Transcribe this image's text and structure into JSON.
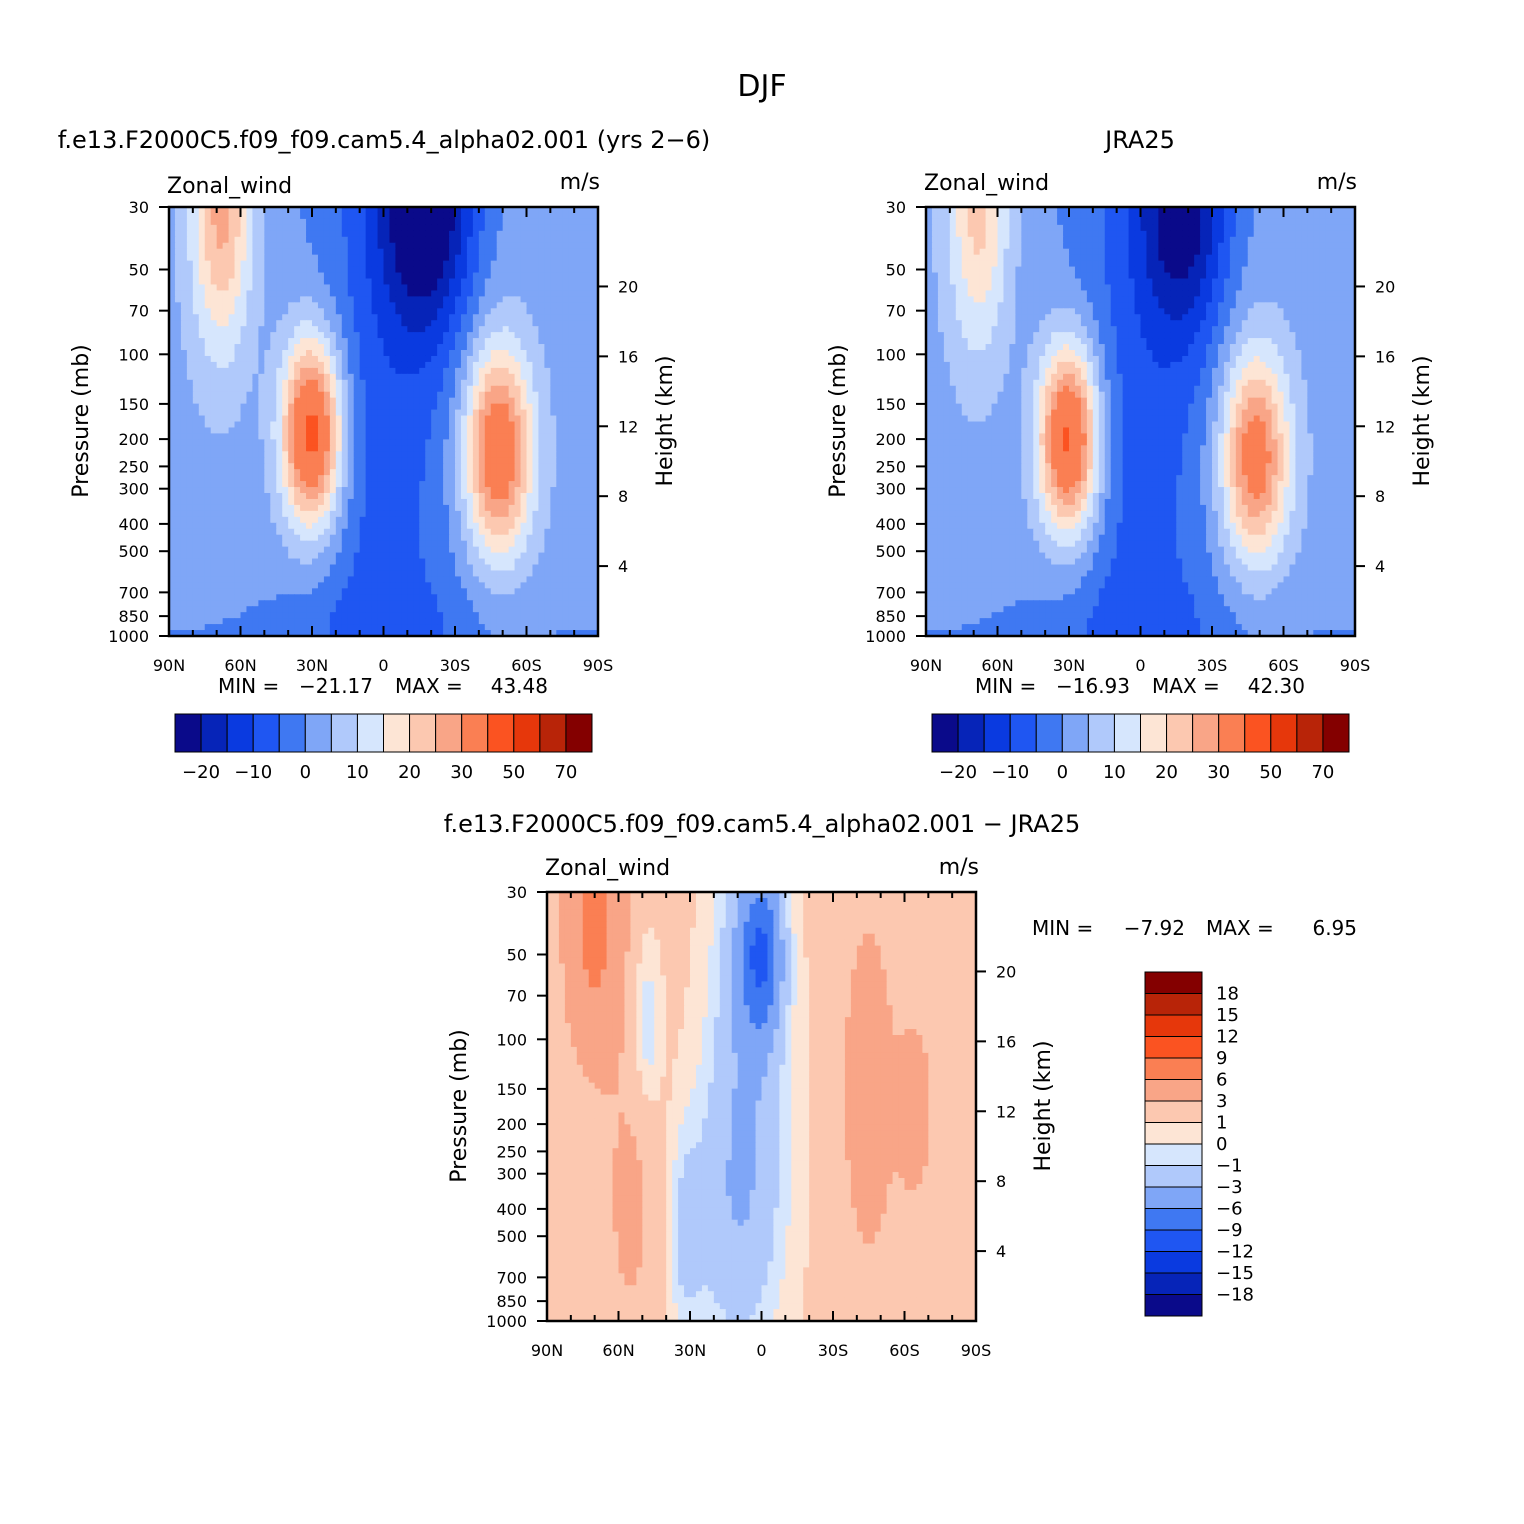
{
  "figure": {
    "title": "DJF"
  },
  "chart_data": [
    {
      "type": "heatmap",
      "title": "f.e13.F2000C5.f09_f09.cam5.4_alpha02.001 (yrs 2−6)",
      "left_label": "Zonal_wind",
      "right_label": "m/s",
      "xlabel": "",
      "ylabel": "Pressure (mb)",
      "y2label": "Height (km)",
      "x_ticks": [
        "90N",
        "60N",
        "30N",
        "0",
        "30S",
        "60S",
        "90S"
      ],
      "xlim": [
        90,
        -90
      ],
      "y_ticks": [
        30,
        50,
        70,
        100,
        150,
        200,
        250,
        300,
        400,
        500,
        700,
        850,
        1000
      ],
      "ylim": [
        1000,
        30
      ],
      "y_scale": "log",
      "y2_ticks": [
        4,
        8,
        12,
        16,
        20
      ],
      "min_label": "MIN =",
      "min_value": "−21.17",
      "max_label": "MAX =",
      "max_value": "43.48",
      "levels": [
        -25,
        -20,
        -15,
        -10,
        -5,
        0,
        5,
        10,
        15,
        20,
        25,
        30,
        40,
        50,
        60,
        70
      ],
      "colorbar_labels": [
        "−20",
        "−10",
        "0",
        "10",
        "20",
        "30",
        "50",
        "70"
      ],
      "colors": [
        "#0a0a8a",
        "#0624b8",
        "#0a3ae0",
        "#1f56f2",
        "#3f78f2",
        "#7fa6f7",
        "#b0c9fb",
        "#d6e6fd",
        "#fde5d5",
        "#fcc8b0",
        "#f9a587",
        "#fa7f53",
        "#fb5321",
        "#e6370b",
        "#b82408",
        "#840000"
      ],
      "jets": [
        {
          "lat": 30,
          "p": 190,
          "peak": 43.5
        },
        {
          "lat": -48,
          "p": 220,
          "peak": 36
        }
      ]
    },
    {
      "type": "heatmap",
      "title": "JRA25",
      "left_label": "Zonal_wind",
      "right_label": "m/s",
      "xlabel": "",
      "ylabel": "Pressure (mb)",
      "y2label": "Height (km)",
      "x_ticks": [
        "90N",
        "60N",
        "30N",
        "0",
        "30S",
        "60S",
        "90S"
      ],
      "xlim": [
        90,
        -90
      ],
      "y_ticks": [
        30,
        50,
        70,
        100,
        150,
        200,
        250,
        300,
        400,
        500,
        700,
        850,
        1000
      ],
      "ylim": [
        1000,
        30
      ],
      "y_scale": "log",
      "y2_ticks": [
        4,
        8,
        12,
        16,
        20
      ],
      "min_label": "MIN =",
      "min_value": "−16.93",
      "max_label": "MAX =",
      "max_value": "42.30",
      "levels": [
        -25,
        -20,
        -15,
        -10,
        -5,
        0,
        5,
        10,
        15,
        20,
        25,
        30,
        40,
        50,
        60,
        70
      ],
      "colorbar_labels": [
        "−20",
        "−10",
        "0",
        "10",
        "20",
        "30",
        "50",
        "70"
      ],
      "colors": [
        "#0a0a8a",
        "#0624b8",
        "#0a3ae0",
        "#1f56f2",
        "#3f78f2",
        "#7fa6f7",
        "#b0c9fb",
        "#d6e6fd",
        "#fde5d5",
        "#fcc8b0",
        "#f9a587",
        "#fa7f53",
        "#fb5321",
        "#e6370b",
        "#b82408",
        "#840000"
      ],
      "jets": [
        {
          "lat": 30,
          "p": 200,
          "peak": 42.3
        },
        {
          "lat": -48,
          "p": 230,
          "peak": 33
        }
      ]
    },
    {
      "type": "heatmap",
      "title": "f.e13.F2000C5.f09_f09.cam5.4_alpha02.001 − JRA25",
      "left_label": "Zonal_wind",
      "right_label": "m/s",
      "xlabel": "",
      "ylabel": "Pressure (mb)",
      "y2label": "Height (km)",
      "x_ticks": [
        "90N",
        "60N",
        "30N",
        "0",
        "30S",
        "60S",
        "90S"
      ],
      "xlim": [
        90,
        -90
      ],
      "y_ticks": [
        30,
        50,
        70,
        100,
        150,
        200,
        250,
        300,
        400,
        500,
        700,
        850,
        1000
      ],
      "ylim": [
        1000,
        30
      ],
      "y_scale": "log",
      "y2_ticks": [
        4,
        8,
        12,
        16,
        20
      ],
      "min_label": "MIN =",
      "min_value": "−7.92",
      "max_label": "MAX =",
      "max_value": "6.95",
      "levels": [
        -18,
        -15,
        -12,
        -9,
        -6,
        -3,
        -1,
        0,
        1,
        3,
        6,
        9,
        12,
        15,
        18
      ],
      "colorbar_labels": [
        "18",
        "15",
        "12",
        "9",
        "6",
        "3",
        "1",
        "0",
        "−1",
        "−3",
        "−6",
        "−9",
        "−12",
        "−15",
        "−18"
      ],
      "colors": [
        "#840000",
        "#b82408",
        "#e6370b",
        "#fb5321",
        "#fa7f53",
        "#f9a587",
        "#fcc8b0",
        "#fde5d5",
        "#d6e6fd",
        "#b0c9fb",
        "#7fa6f7",
        "#3f78f2",
        "#1f56f2",
        "#0a3ae0",
        "#0624b8",
        "#0a0a8a"
      ]
    }
  ]
}
